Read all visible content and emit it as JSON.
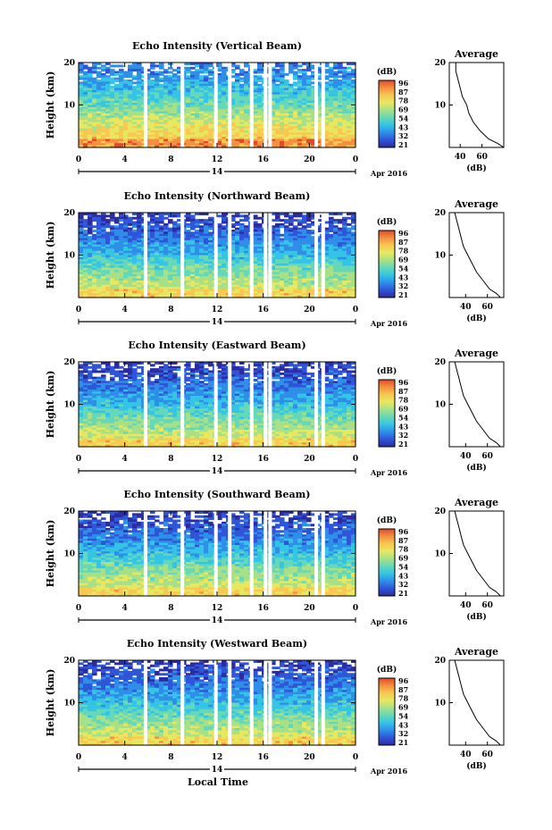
{
  "figure": {
    "x_axis_label": "Local Time",
    "date_day": "14",
    "date_month_year": "Apr 2016",
    "colorbar_unit": "(dB)",
    "colorbar_ticks": [
      "96",
      "87",
      "78",
      "69",
      "54",
      "43",
      "32",
      "21"
    ],
    "average_title": "Average",
    "average_xlabel": "(dB)",
    "height_label": "Height (km)",
    "time_ticks": [
      "0",
      "4",
      "8",
      "12",
      "16",
      "20",
      "0"
    ],
    "height_ticks": [
      "20",
      "10"
    ],
    "colormap": [
      "#2c2ca0",
      "#2f55d8",
      "#2f8fe8",
      "#34c4e6",
      "#64d8b8",
      "#a8e088",
      "#e8e860",
      "#f8c850",
      "#f49040",
      "#e04a2a"
    ]
  },
  "chart_data": [
    {
      "type": "heatmap",
      "title": "Echo Intensity (Vertical Beam)",
      "x_unit": "local time (h)",
      "xlim": [
        0,
        24
      ],
      "ylim": [
        0,
        20
      ],
      "colorbar": {
        "label": "(dB)",
        "range": [
          21,
          96
        ],
        "ticks": [
          96,
          87,
          78,
          69,
          54,
          43,
          32,
          21
        ]
      },
      "data_gaps_hours": [
        5.8,
        9.0,
        11.9,
        13.1,
        15.0,
        16.2,
        16.6,
        20.6,
        21.2
      ],
      "average_profile": {
        "title": "Average",
        "xlabel": "(dB)",
        "xlim": [
          30,
          80
        ],
        "xticks": [
          40,
          60
        ],
        "x": [
          80,
          74,
          66,
          58,
          52,
          48,
          46,
          42,
          40,
          38,
          36,
          36
        ],
        "y": [
          0,
          1,
          2,
          4,
          6,
          8,
          10,
          12,
          14,
          16,
          18,
          20
        ]
      }
    },
    {
      "type": "heatmap",
      "title": "Echo Intensity (Northward Beam)",
      "x_unit": "local time (h)",
      "xlim": [
        0,
        24
      ],
      "ylim": [
        0,
        20
      ],
      "colorbar": {
        "label": "(dB)",
        "range": [
          21,
          96
        ],
        "ticks": [
          96,
          87,
          78,
          69,
          54,
          43,
          32,
          21
        ]
      },
      "data_gaps_hours": [
        5.8,
        9.0,
        11.9,
        13.1,
        15.0,
        16.2,
        16.6,
        20.6,
        21.2
      ],
      "average_profile": {
        "title": "Average",
        "xlabel": "(dB)",
        "xlim": [
          25,
          75
        ],
        "xticks": [
          40,
          60
        ],
        "x": [
          72,
          68,
          62,
          56,
          50,
          46,
          42,
          38,
          36,
          34,
          32,
          30
        ],
        "y": [
          0,
          1,
          2,
          4,
          6,
          8,
          10,
          12,
          14,
          16,
          18,
          20
        ]
      }
    },
    {
      "type": "heatmap",
      "title": "Echo Intensity (Eastward Beam)",
      "x_unit": "local time (h)",
      "xlim": [
        0,
        24
      ],
      "ylim": [
        0,
        20
      ],
      "colorbar": {
        "label": "(dB)",
        "range": [
          21,
          96
        ],
        "ticks": [
          96,
          87,
          78,
          69,
          54,
          43,
          32,
          21
        ]
      },
      "data_gaps_hours": [
        5.8,
        9.0,
        11.9,
        13.1,
        15.0,
        16.2,
        16.6,
        20.6,
        21.2
      ],
      "average_profile": {
        "title": "Average",
        "xlabel": "(dB)",
        "xlim": [
          25,
          75
        ],
        "xticks": [
          40,
          60
        ],
        "x": [
          72,
          68,
          62,
          56,
          50,
          46,
          42,
          38,
          36,
          34,
          32,
          30
        ],
        "y": [
          0,
          1,
          2,
          4,
          6,
          8,
          10,
          12,
          14,
          16,
          18,
          20
        ]
      }
    },
    {
      "type": "heatmap",
      "title": "Echo Intensity (Southward Beam)",
      "x_unit": "local time (h)",
      "xlim": [
        0,
        24
      ],
      "ylim": [
        0,
        20
      ],
      "colorbar": {
        "label": "(dB)",
        "range": [
          21,
          96
        ],
        "ticks": [
          96,
          87,
          78,
          69,
          54,
          43,
          32,
          21
        ]
      },
      "data_gaps_hours": [
        5.8,
        9.0,
        11.9,
        13.1,
        15.0,
        16.2,
        16.6,
        20.6,
        21.2
      ],
      "average_profile": {
        "title": "Average",
        "xlabel": "(dB)",
        "xlim": [
          25,
          75
        ],
        "xticks": [
          40,
          60
        ],
        "x": [
          72,
          68,
          62,
          56,
          50,
          46,
          42,
          38,
          36,
          34,
          32,
          30
        ],
        "y": [
          0,
          1,
          2,
          4,
          6,
          8,
          10,
          12,
          14,
          16,
          18,
          20
        ]
      }
    },
    {
      "type": "heatmap",
      "title": "Echo Intensity (Westward Beam)",
      "x_unit": "local time (h)",
      "xlim": [
        0,
        24
      ],
      "ylim": [
        0,
        20
      ],
      "colorbar": {
        "label": "(dB)",
        "range": [
          21,
          96
        ],
        "ticks": [
          96,
          87,
          78,
          69,
          54,
          43,
          32,
          21
        ]
      },
      "data_gaps_hours": [
        5.8,
        9.0,
        11.9,
        13.1,
        15.0,
        16.2,
        16.6,
        20.6,
        21.2
      ],
      "average_profile": {
        "title": "Average",
        "xlabel": "(dB)",
        "xlim": [
          25,
          75
        ],
        "xticks": [
          40,
          60
        ],
        "x": [
          72,
          68,
          62,
          56,
          50,
          46,
          42,
          38,
          36,
          34,
          32,
          30
        ],
        "y": [
          0,
          1,
          2,
          4,
          6,
          8,
          10,
          12,
          14,
          16,
          18,
          20
        ]
      }
    }
  ]
}
